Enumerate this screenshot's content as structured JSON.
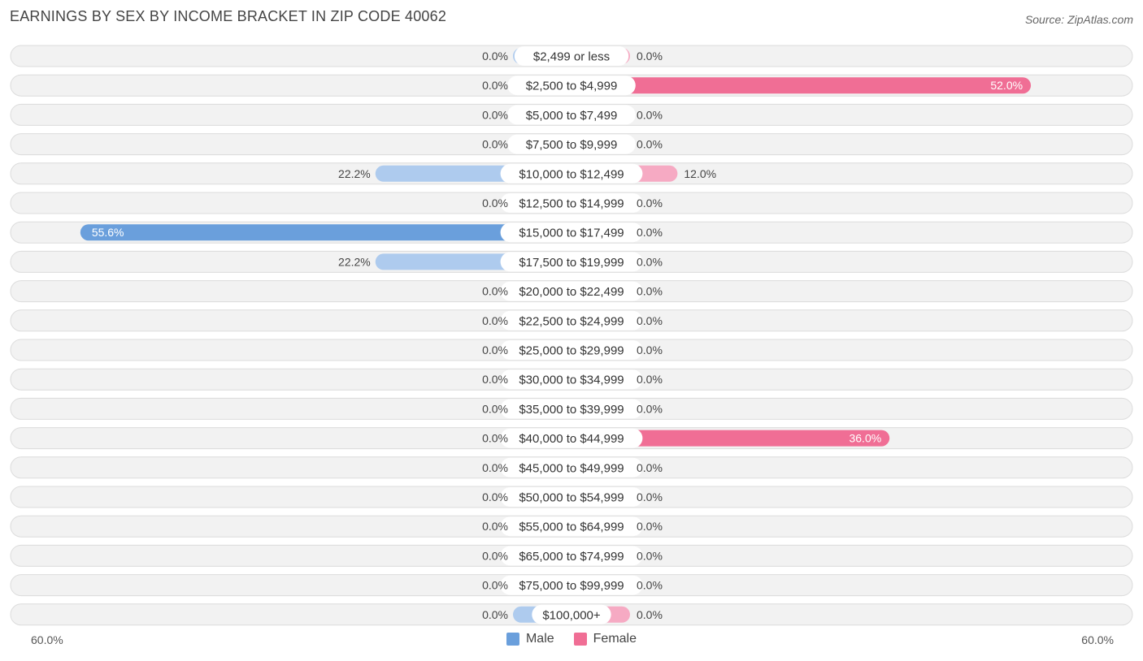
{
  "title": "EARNINGS BY SEX BY INCOME BRACKET IN ZIP CODE 40062",
  "source": "Source: ZipAtlas.com",
  "colors": {
    "male_light": "#aecbee",
    "male_strong": "#6a9fdc",
    "female_light": "#f6aac3",
    "female_strong": "#f06e95",
    "row_bg": "#f2f2f2",
    "row_border": "#dcdcdc"
  },
  "legend": {
    "male": "Male",
    "female": "Female"
  },
  "axis": {
    "left_label": "60.0%",
    "right_label": "60.0%"
  },
  "chart_data": {
    "type": "bar",
    "orientation": "horizontal-diverging",
    "title": "EARNINGS BY SEX BY INCOME BRACKET IN ZIP CODE 40062",
    "xlim": [
      -60,
      60
    ],
    "categories": [
      "$2,499 or less",
      "$2,500 to $4,999",
      "$5,000 to $7,499",
      "$7,500 to $9,999",
      "$10,000 to $12,499",
      "$12,500 to $14,999",
      "$15,000 to $17,499",
      "$17,500 to $19,999",
      "$20,000 to $22,499",
      "$22,500 to $24,999",
      "$25,000 to $29,999",
      "$30,000 to $34,999",
      "$35,000 to $39,999",
      "$40,000 to $44,999",
      "$45,000 to $49,999",
      "$50,000 to $54,999",
      "$55,000 to $64,999",
      "$65,000 to $74,999",
      "$75,000 to $99,999",
      "$100,000+"
    ],
    "series": [
      {
        "name": "Male",
        "values": [
          0,
          0,
          0,
          0,
          22.2,
          0,
          55.6,
          22.2,
          0,
          0,
          0,
          0,
          0,
          0,
          0,
          0,
          0,
          0,
          0,
          0
        ],
        "labels": [
          "0.0%",
          "0.0%",
          "0.0%",
          "0.0%",
          "22.2%",
          "0.0%",
          "55.6%",
          "22.2%",
          "0.0%",
          "0.0%",
          "0.0%",
          "0.0%",
          "0.0%",
          "0.0%",
          "0.0%",
          "0.0%",
          "0.0%",
          "0.0%",
          "0.0%",
          "0.0%"
        ]
      },
      {
        "name": "Female",
        "values": [
          0,
          52.0,
          0,
          0,
          12.0,
          0,
          0,
          0,
          0,
          0,
          0,
          0,
          0,
          36.0,
          0,
          0,
          0,
          0,
          0,
          0
        ],
        "labels": [
          "0.0%",
          "52.0%",
          "0.0%",
          "0.0%",
          "12.0%",
          "0.0%",
          "0.0%",
          "0.0%",
          "0.0%",
          "0.0%",
          "0.0%",
          "0.0%",
          "0.0%",
          "36.0%",
          "0.0%",
          "0.0%",
          "0.0%",
          "0.0%",
          "0.0%",
          "0.0%"
        ]
      }
    ]
  }
}
